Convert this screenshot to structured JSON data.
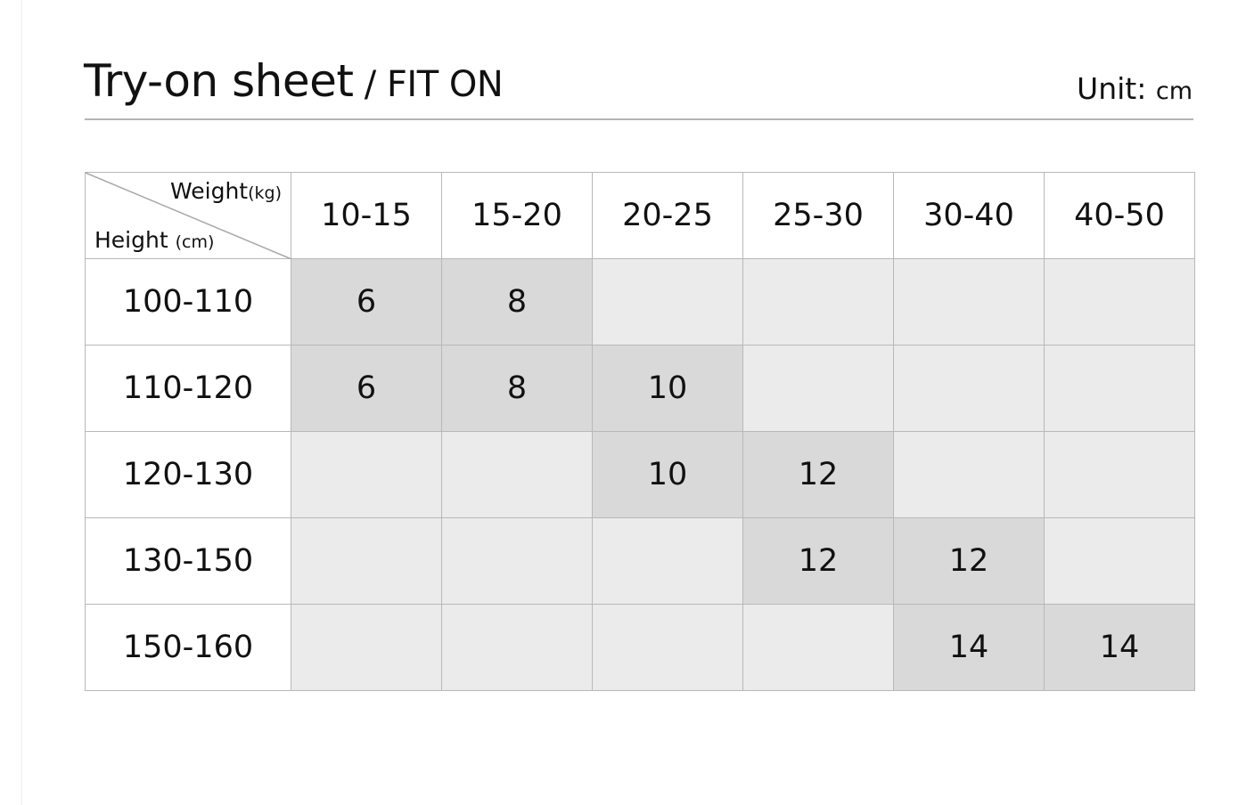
{
  "header": {
    "title_main": "Try-on sheet",
    "title_sep": " / ",
    "title_sub": "FIT ON",
    "unit_label": "Unit: ",
    "unit_value": "cm"
  },
  "table": {
    "corner": {
      "weight": "Weight",
      "weight_unit": "(kg)",
      "height": "Height ",
      "height_unit": "(cm)"
    },
    "columns": [
      "10-15",
      "15-20",
      "20-25",
      "25-30",
      "30-40",
      "40-50"
    ],
    "rows": [
      {
        "label": "100-110",
        "cells": [
          "6",
          "8",
          "",
          "",
          "",
          ""
        ]
      },
      {
        "label": "110-120",
        "cells": [
          "6",
          "8",
          "10",
          "",
          "",
          ""
        ]
      },
      {
        "label": "120-130",
        "cells": [
          "",
          "",
          "10",
          "12",
          "",
          ""
        ]
      },
      {
        "label": "130-150",
        "cells": [
          "",
          "",
          "",
          "12",
          "12",
          ""
        ]
      },
      {
        "label": "150-160",
        "cells": [
          "",
          "",
          "",
          "",
          "14",
          "14"
        ]
      }
    ]
  },
  "colors": {
    "highlight": "#d9d9d9",
    "empty": "#ebebeb",
    "border": "#b8b8b8"
  }
}
